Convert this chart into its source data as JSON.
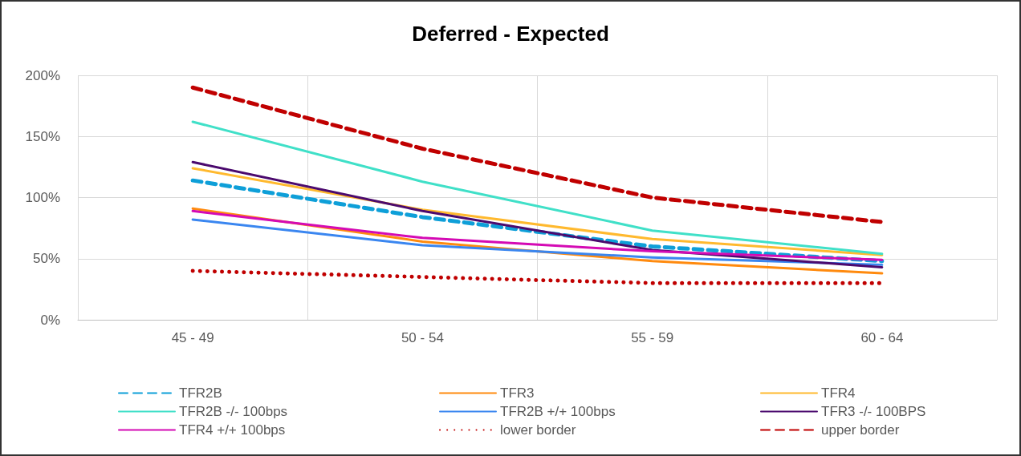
{
  "chart_data": {
    "type": "line",
    "title": "Deferred - Expected",
    "categories": [
      "45 - 49",
      "50 - 54",
      "55 - 59",
      "60 - 64"
    ],
    "series": [
      {
        "name": "TFR2B",
        "color": "#0e9fd8",
        "line_style": "dashed",
        "values": [
          114,
          84,
          60,
          48
        ]
      },
      {
        "name": "TFR3",
        "color": "#ff8a0e",
        "values": [
          91,
          64,
          48,
          38
        ]
      },
      {
        "name": "TFR4",
        "color": "#ffb92e",
        "values": [
          124,
          90,
          66,
          53
        ]
      },
      {
        "name": "TFR2B -/- 100bps",
        "color": "#40e0c8",
        "values": [
          162,
          113,
          73,
          54
        ]
      },
      {
        "name": "TFR2B +/+ 100bps",
        "color": "#3a86f0",
        "values": [
          82,
          61,
          51,
          45
        ]
      },
      {
        "name": "TFR3 -/- 100BPS",
        "color": "#4b0a6e",
        "values": [
          129,
          89,
          57,
          43
        ]
      },
      {
        "name": "TFR4 +/+ 100bps",
        "color": "#d40ab4",
        "values": [
          89,
          67,
          56,
          49
        ]
      },
      {
        "name": "lower border",
        "color": "#c00000",
        "line_style": "dotted",
        "values": [
          40,
          35,
          30,
          30
        ]
      },
      {
        "name": "upper border",
        "color": "#c00000",
        "line_style": "dashed",
        "values": [
          190,
          140,
          100,
          80
        ]
      }
    ],
    "ylim": [
      0,
      200
    ],
    "yticks": [
      {
        "value": 0,
        "label": "0%"
      },
      {
        "value": 50,
        "label": "50%"
      },
      {
        "value": 100,
        "label": "100%"
      },
      {
        "value": 150,
        "label": "150%"
      },
      {
        "value": 200,
        "label": "200%"
      }
    ],
    "grid": true,
    "legend": "bottom",
    "marker": "none"
  }
}
